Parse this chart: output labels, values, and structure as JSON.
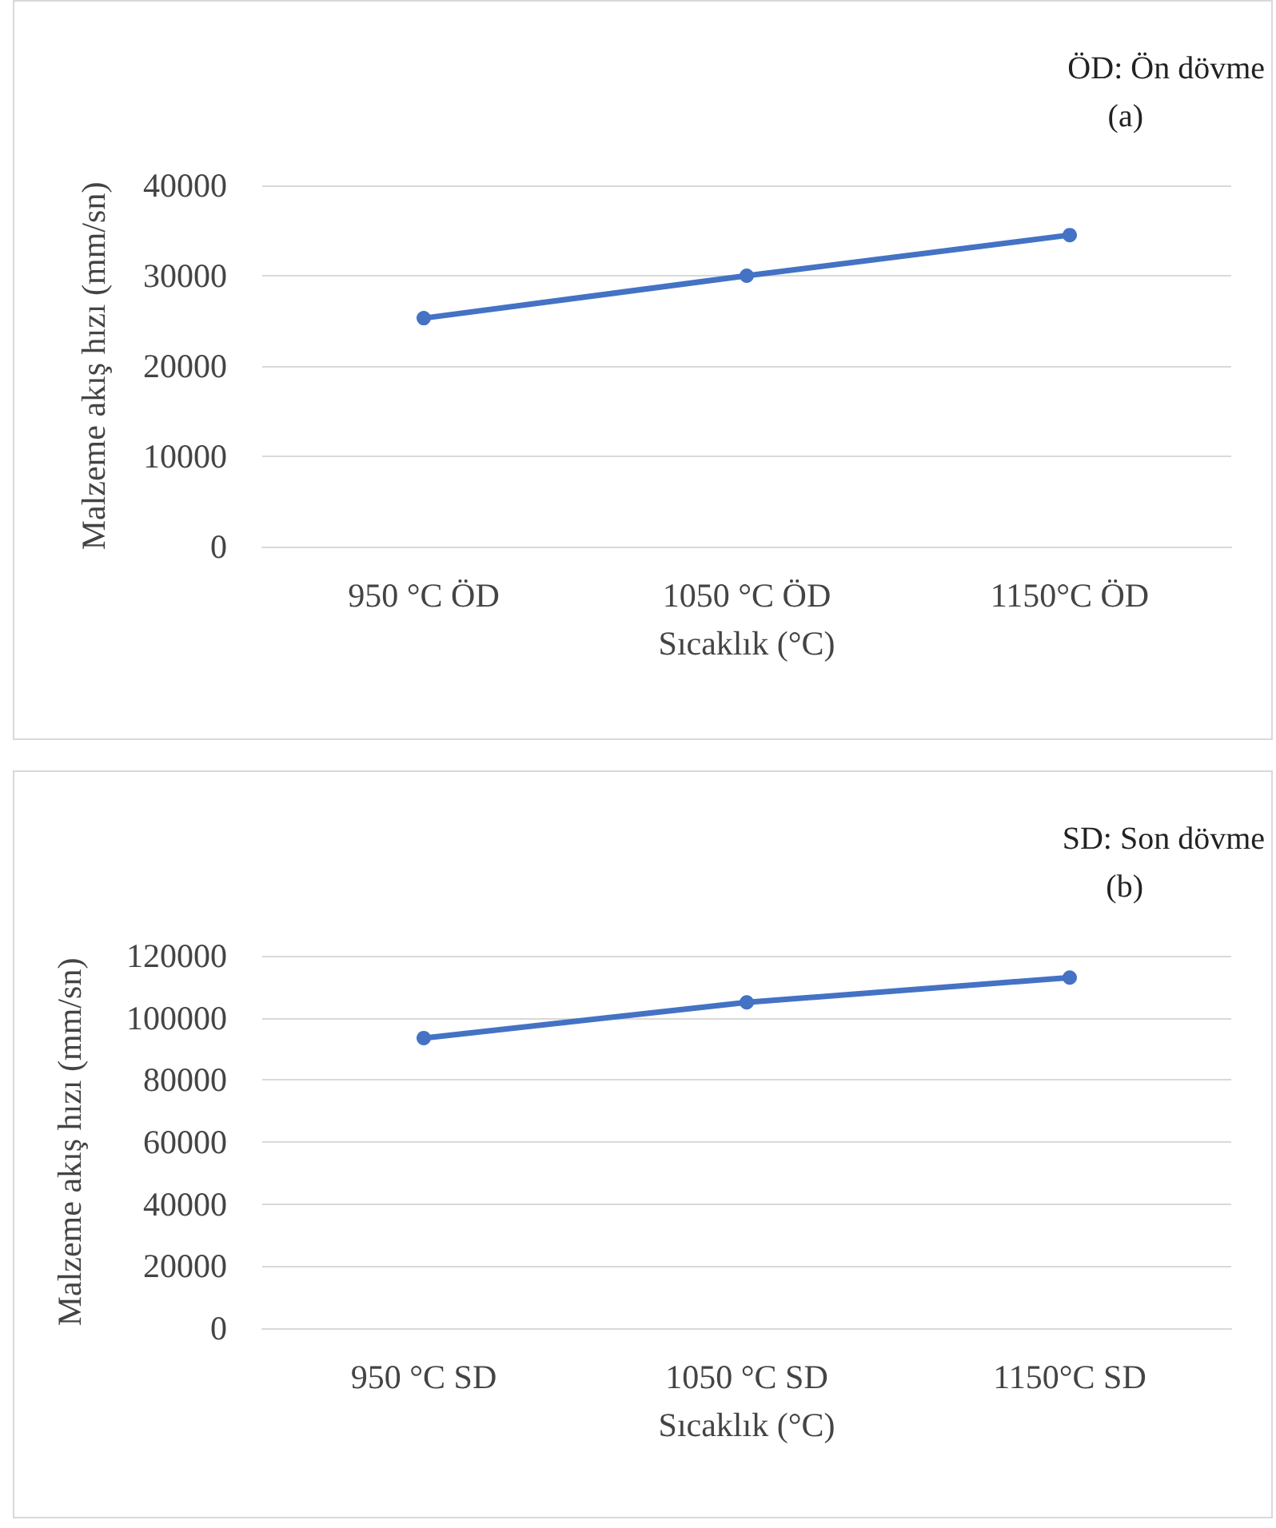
{
  "chart_data": [
    {
      "type": "line",
      "xlabel": "Sıcaklık (°C)",
      "ylabel": "Malzeme akış hızı (mm/sn)",
      "annotations": [
        "ÖD: Ön dövme",
        "(a)"
      ],
      "categories": [
        "950 °C ÖD",
        "1050 °C ÖD",
        "1150°C ÖD"
      ],
      "series": [
        {
          "color": "#4472c4",
          "values": [
            25300,
            30000,
            34500
          ]
        }
      ],
      "ylim": [
        0,
        40000
      ],
      "yticks": [
        0,
        10000,
        20000,
        30000,
        40000
      ],
      "grid": "y",
      "marker": "circle",
      "line_style": "solid"
    },
    {
      "type": "line",
      "xlabel": "Sıcaklık (°C)",
      "ylabel": "Malzeme akış hızı (mm/sn)",
      "annotations": [
        "SD: Son dövme",
        "(b)"
      ],
      "categories": [
        "950 °C SD",
        "1050 °C SD",
        "1150°C SD"
      ],
      "series": [
        {
          "color": "#4472c4",
          "values": [
            93500,
            105000,
            113000
          ]
        }
      ],
      "ylim": [
        0,
        120000
      ],
      "yticks": [
        0,
        20000,
        40000,
        60000,
        80000,
        100000,
        120000
      ],
      "grid": "y",
      "marker": "circle",
      "line_style": "solid"
    }
  ]
}
